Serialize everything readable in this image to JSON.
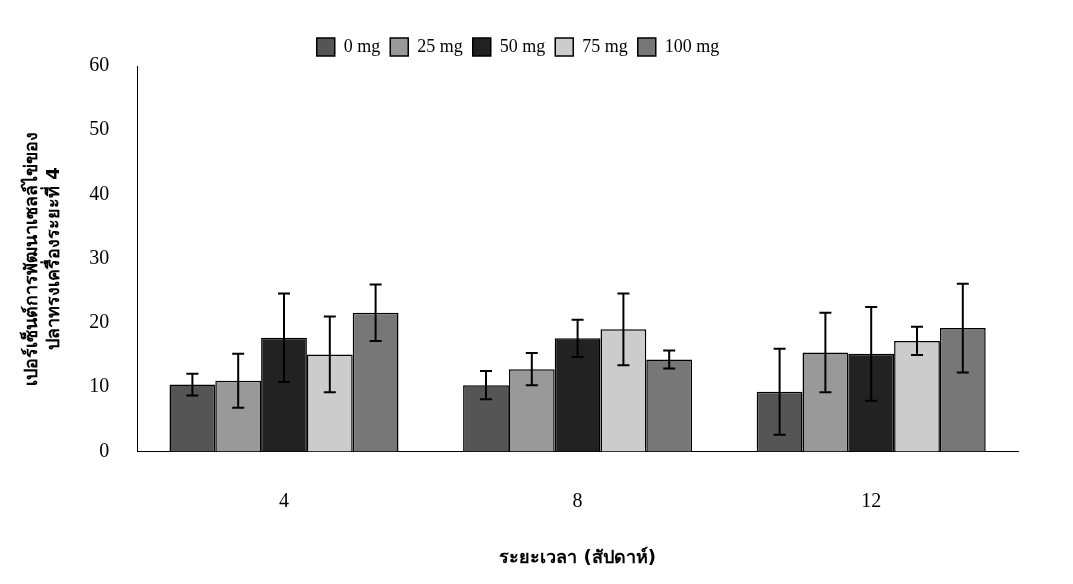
{
  "chart_data": {
    "type": "bar",
    "xlabel": "ระยะเวลา (สัปดาห์)",
    "ylabel": "เปอร์เซ็นต์การพัฒนาเซลล์ไข่ของ\nปลาทรงเครื่องระยะที่ 4",
    "categories": [
      "4",
      "8",
      "12"
    ],
    "series": [
      {
        "name": "0 mg",
        "color": "#555555",
        "values": [
          10.4,
          10.3,
          9.3
        ],
        "errors": [
          1.7,
          2.2,
          6.7
        ]
      },
      {
        "name": "25 mg",
        "color": "#999999",
        "values": [
          11,
          12.8,
          15.4
        ],
        "errors": [
          4.2,
          2.5,
          6.2
        ]
      },
      {
        "name": "50 mg",
        "color": "#222222",
        "values": [
          17.7,
          17.6,
          15.2
        ],
        "errors": [
          6.9,
          2.9,
          7.3
        ]
      },
      {
        "name": "75 mg",
        "color": "#cccccc",
        "values": [
          15.1,
          19,
          17.2
        ],
        "errors": [
          5.9,
          5.6,
          2.2
        ]
      },
      {
        "name": "100 mg",
        "color": "#777777",
        "values": [
          21.6,
          14.3,
          19.2
        ],
        "errors": [
          4.4,
          1.4,
          6.9
        ]
      }
    ],
    "ylim": [
      0,
      60
    ],
    "yticks": [
      0,
      10,
      20,
      30,
      40,
      50,
      60
    ],
    "grid": false,
    "legend": "top"
  }
}
